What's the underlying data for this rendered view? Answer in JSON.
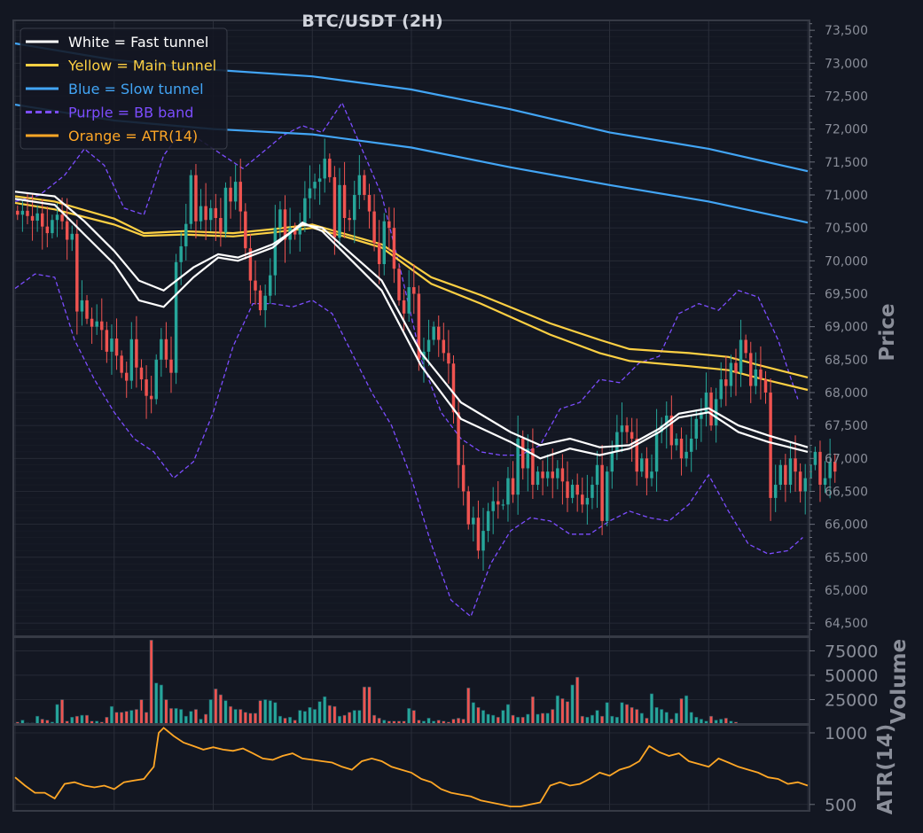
{
  "chart_data": {
    "type": "line",
    "title": "BTC/USDT (2H)",
    "colors": {
      "background": "#131722",
      "panel_border": "#363a45",
      "grid": "#2a2e39",
      "tick_text": "#8a8e99",
      "title_text": "#d1d4dc",
      "bull_candle": "#26a69a",
      "bear_candle": "#ef5350",
      "fast_tunnel": "#ffffff",
      "main_tunnel": "#fdd043",
      "slow_tunnel": "#42a5f5",
      "bb_band": "#7c4dff",
      "atr": "#ffa726"
    },
    "legend": {
      "placement": "top-left",
      "entries": [
        {
          "label": "White = Fast tunnel",
          "color": "#ffffff",
          "style": "solid"
        },
        {
          "label": "Yellow = Main tunnel",
          "color": "#fdd043",
          "style": "solid"
        },
        {
          "label": "Blue = Slow tunnel",
          "color": "#42a5f5",
          "style": "solid"
        },
        {
          "label": "Purple = BB band",
          "color": "#7c4dff",
          "style": "dashed"
        },
        {
          "label": "Orange = ATR(14)",
          "color": "#ffa726",
          "style": "solid"
        }
      ]
    },
    "x_range": [
      0,
      160
    ],
    "price_panel": {
      "ylabel": "Price",
      "ylim": [
        64300,
        73650
      ],
      "ticks": [
        64500,
        65000,
        65500,
        66000,
        66500,
        67000,
        67500,
        68000,
        68500,
        69000,
        69500,
        70000,
        70500,
        71000,
        71500,
        72000,
        72500,
        73000,
        73500
      ],
      "tick_labels": [
        "64,500",
        "65,000",
        "65,500",
        "66,000",
        "66,500",
        "67,000",
        "67,500",
        "68,000",
        "68,500",
        "69,000",
        "69,500",
        "70,000",
        "70,500",
        "71,000",
        "71,500",
        "72,000",
        "72,500",
        "73,000",
        "73,500"
      ],
      "grid": true,
      "series": [
        {
          "id": "slow-tunnel-upper",
          "color": "#42a5f5",
          "style": "solid",
          "x": [
            0,
            20,
            40,
            60,
            80,
            100,
            120,
            140,
            160
          ],
          "y": [
            73300,
            73050,
            72900,
            72800,
            72600,
            72300,
            71950,
            71700,
            71360
          ]
        },
        {
          "id": "slow-tunnel-lower",
          "color": "#42a5f5",
          "style": "solid",
          "x": [
            0,
            20,
            40,
            60,
            80,
            100,
            120,
            140,
            160
          ],
          "y": [
            72370,
            72130,
            72000,
            71920,
            71720,
            71420,
            71150,
            70900,
            70580
          ]
        },
        {
          "id": "main-tunnel-upper",
          "color": "#fdd043",
          "style": "solid",
          "x": [
            0,
            8,
            20,
            26,
            34,
            44,
            52,
            60,
            66,
            74,
            84,
            94,
            108,
            118,
            124,
            136,
            144,
            150,
            160
          ],
          "y": [
            70980,
            70900,
            70640,
            70420,
            70450,
            70420,
            70480,
            70550,
            70420,
            70250,
            69750,
            69480,
            69050,
            68800,
            68660,
            68600,
            68540,
            68420,
            68230
          ]
        },
        {
          "id": "main-tunnel-lower",
          "color": "#fdd043",
          "style": "solid",
          "x": [
            0,
            8,
            20,
            26,
            34,
            44,
            52,
            60,
            66,
            74,
            84,
            94,
            108,
            118,
            124,
            136,
            144,
            150,
            160
          ],
          "y": [
            70880,
            70780,
            70550,
            70380,
            70400,
            70370,
            70430,
            70500,
            70380,
            70200,
            69650,
            69350,
            68880,
            68600,
            68480,
            68400,
            68340,
            68220,
            68040
          ]
        },
        {
          "id": "fast-tunnel-upper",
          "color": "#ffffff",
          "style": "solid",
          "x": [
            0,
            8,
            14,
            20,
            25,
            30,
            36,
            41,
            45,
            52,
            58,
            62,
            68,
            74,
            82,
            90,
            100,
            106,
            112,
            118,
            124,
            130,
            134,
            140,
            146,
            152,
            160
          ],
          "y": [
            71050,
            70980,
            70600,
            70150,
            69700,
            69550,
            69900,
            70100,
            70050,
            70250,
            70550,
            70500,
            70100,
            69700,
            68600,
            67850,
            67400,
            67200,
            67300,
            67170,
            67200,
            67450,
            67680,
            67760,
            67500,
            67350,
            67170
          ]
        },
        {
          "id": "fast-tunnel-lower",
          "color": "#ffffff",
          "style": "solid",
          "x": [
            0,
            8,
            14,
            20,
            25,
            30,
            36,
            41,
            45,
            52,
            58,
            62,
            68,
            74,
            82,
            90,
            100,
            106,
            112,
            118,
            124,
            130,
            134,
            140,
            146,
            152,
            160
          ],
          "y": [
            70940,
            70850,
            70400,
            69950,
            69400,
            69300,
            69750,
            70050,
            70000,
            70200,
            70580,
            70450,
            70000,
            69550,
            68400,
            67600,
            67250,
            67000,
            67150,
            67050,
            67150,
            67400,
            67620,
            67700,
            67400,
            67250,
            67100
          ]
        },
        {
          "id": "bb-upper",
          "color": "#7c4dff",
          "style": "dashed",
          "x": [
            0,
            5,
            10,
            14,
            18,
            22,
            26,
            30,
            34,
            38,
            42,
            46,
            50,
            54,
            58,
            62,
            66,
            70,
            74,
            78,
            82,
            86,
            90,
            94,
            98,
            102,
            106,
            110,
            114,
            118,
            122,
            126,
            130,
            134,
            138,
            142,
            146,
            150,
            154,
            158
          ],
          "y": [
            70900,
            71000,
            71300,
            71700,
            71450,
            70800,
            70700,
            71600,
            72000,
            71800,
            71600,
            71400,
            71650,
            71900,
            72050,
            71950,
            72400,
            71700,
            71000,
            69800,
            68500,
            67700,
            67300,
            67100,
            67050,
            67050,
            67200,
            67750,
            67850,
            68200,
            68150,
            68450,
            68550,
            69200,
            69350,
            69250,
            69550,
            69450,
            68800,
            67900
          ]
        },
        {
          "id": "bb-lower",
          "color": "#7c4dff",
          "style": "dashed",
          "x": [
            0,
            4,
            8,
            12,
            16,
            20,
            24,
            28,
            32,
            36,
            40,
            44,
            48,
            52,
            56,
            60,
            64,
            68,
            72,
            76,
            80,
            84,
            88,
            92,
            96,
            100,
            104,
            108,
            112,
            116,
            120,
            124,
            128,
            132,
            136,
            140,
            144,
            148,
            152,
            156,
            159
          ],
          "y": [
            69580,
            69800,
            69750,
            68800,
            68200,
            67700,
            67300,
            67100,
            66700,
            66950,
            67700,
            68700,
            69350,
            69350,
            69300,
            69400,
            69200,
            68600,
            68000,
            67500,
            66700,
            65700,
            64850,
            64600,
            65400,
            65900,
            66100,
            66050,
            65850,
            65850,
            66050,
            66200,
            66100,
            66050,
            66300,
            66750,
            66200,
            65700,
            65550,
            65600,
            65800
          ]
        }
      ],
      "candles": {
        "x_start": 0,
        "closes": [
          70700,
          70760,
          70680,
          70610,
          70720,
          70520,
          70420,
          70620,
          70700,
          70600,
          70320,
          70410,
          69230,
          69400,
          69120,
          69000,
          69080,
          68950,
          68620,
          68820,
          68560,
          68300,
          68180,
          68810,
          68380,
          68200,
          67950,
          67900,
          68500,
          68810,
          68500,
          68300,
          69980,
          70220,
          70560,
          71300,
          70600,
          70830,
          70620,
          70800,
          70650,
          70430,
          71110,
          70900,
          71200,
          70750,
          70190,
          69700,
          69550,
          69250,
          69470,
          69780,
          70500,
          70780,
          70320,
          70500,
          70400,
          70560,
          70950,
          71100,
          71200,
          71250,
          71550,
          71270,
          70350,
          71150,
          70650,
          70620,
          71000,
          71300,
          71000,
          70750,
          70270,
          69950,
          70600,
          70500,
          69880,
          69400,
          69200,
          69600,
          69500,
          68500,
          68620,
          68800,
          69000,
          68800,
          68600,
          68440,
          67700,
          66900,
          66500,
          66000,
          66100,
          65600,
          65900,
          66200,
          66350,
          66300,
          66300,
          66700,
          66450,
          67300,
          66850,
          67150,
          66600,
          66800,
          66700,
          66800,
          66700,
          66850,
          66650,
          66400,
          66600,
          66450,
          66300,
          66400,
          66600,
          66900,
          66050,
          66800,
          67100,
          67400,
          67500,
          67400,
          67300,
          66800,
          67000,
          66700,
          66800,
          67400,
          67500,
          67650,
          67200,
          67300,
          67000,
          67100,
          67300,
          67600,
          67700,
          68000,
          67500,
          67900,
          68200,
          68100,
          68450,
          68300,
          68800,
          68600,
          68100,
          68350,
          68200,
          68000,
          66400,
          66600,
          66900,
          66600,
          67000,
          66800,
          66500,
          66700,
          66900,
          67100,
          66600,
          66700,
          66950,
          66800
        ]
      }
    },
    "volume_panel": {
      "ylabel": "Volume",
      "ylim": [
        0,
        89000
      ],
      "ticks": [
        25000,
        50000,
        75000
      ],
      "tick_labels": [
        "25000",
        "50000",
        "75000"
      ],
      "values": [
        2000,
        4000,
        1000,
        1000,
        8000,
        5000,
        4000,
        2000,
        20000,
        25000,
        3000,
        7000,
        8000,
        9000,
        9000,
        3000,
        3000,
        2000,
        7000,
        18000,
        12000,
        12000,
        13000,
        14000,
        15000,
        25000,
        12000,
        86000,
        42000,
        40000,
        25000,
        16000,
        16000,
        15000,
        8000,
        13000,
        15000,
        5000,
        10000,
        25000,
        36000,
        30000,
        24000,
        18000,
        15000,
        15000,
        12000,
        11000,
        11000,
        24000,
        25000,
        24000,
        22000,
        8000,
        6000,
        7000,
        4000,
        14000,
        13000,
        17000,
        15000,
        23000,
        28000,
        19000,
        18000,
        8000,
        9000,
        12000,
        14000,
        14000,
        38000,
        38000,
        9000,
        6000,
        4000,
        3000,
        3000,
        3000,
        3000,
        16000,
        14000,
        4000,
        3000,
        6000,
        3000,
        4000,
        3000,
        2000,
        5000,
        6000,
        5000,
        37000,
        22000,
        17000,
        14000,
        10000,
        9000,
        7000,
        14000,
        20000,
        9000,
        7000,
        7000,
        10000,
        28000,
        10000,
        11000,
        11000,
        15000,
        29000,
        26000,
        23000,
        40000,
        48000,
        8000,
        7000,
        9000,
        14000,
        8000,
        22000,
        8000,
        7000,
        22000,
        20000,
        17000,
        15000,
        11000,
        6000,
        31000,
        17000,
        15000,
        12000,
        5000,
        11000,
        26000,
        29000,
        12000,
        7000,
        5000,
        3000,
        8000,
        4000,
        5000,
        6000,
        3000,
        2000
      ]
    },
    "atr_panel": {
      "ylabel": "ATR(14)",
      "scale": "log",
      "ylim": [
        470,
        1080
      ],
      "ticks": [
        500,
        1000
      ],
      "tick_labels": [
        "500",
        "1000"
      ],
      "x": [
        0,
        2,
        4,
        6,
        8,
        10,
        12,
        14,
        16,
        18,
        20,
        22,
        24,
        26,
        27,
        28,
        29,
        30,
        32,
        34,
        36,
        38,
        40,
        42,
        44,
        46,
        48,
        50,
        52,
        54,
        56,
        58,
        60,
        62,
        64,
        66,
        68,
        70,
        72,
        74,
        76,
        78,
        80,
        82,
        84,
        86,
        88,
        90,
        92,
        94,
        96,
        98,
        100,
        102,
        104,
        106,
        108,
        110,
        112,
        114,
        116,
        118,
        120,
        122,
        124,
        126,
        128,
        130,
        132,
        134,
        136,
        138,
        140,
        142,
        144,
        146,
        148,
        150,
        152,
        154,
        156,
        158,
        160
      ],
      "values": [
        650,
        600,
        560,
        560,
        530,
        610,
        620,
        600,
        590,
        600,
        580,
        620,
        630,
        640,
        680,
        720,
        1000,
        1050,
        970,
        910,
        880,
        850,
        870,
        850,
        840,
        860,
        820,
        780,
        770,
        800,
        820,
        780,
        770,
        760,
        750,
        720,
        700,
        760,
        780,
        760,
        720,
        700,
        680,
        640,
        620,
        580,
        560,
        550,
        540,
        520,
        510,
        500,
        490,
        490,
        500,
        510,
        600,
        620,
        600,
        610,
        640,
        680,
        660,
        700,
        720,
        760,
        880,
        830,
        800,
        820,
        760,
        740,
        720,
        780,
        750,
        720,
        700,
        680,
        650,
        640,
        610,
        620,
        600
      ]
    }
  }
}
